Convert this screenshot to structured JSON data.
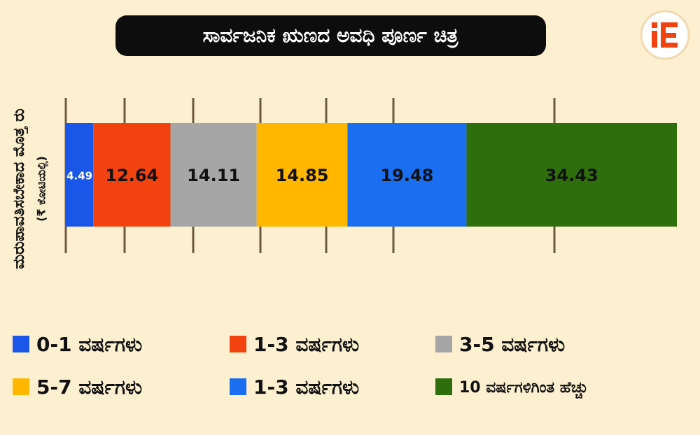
{
  "chart_data": {
    "type": "stacked-barh",
    "title": "ಸಾರ್ವಜನಿಕ ಋಣದ ಅವಧಿ ಪೂರ್ಣ ಚಿತ್ರ",
    "ylabel": "ಮರುಪಾವತಿಸಬೇಕಾದ ಮೊತ್ತ ರು",
    "ylabel_sub": "(₹ ಕೋಟಿಯಲ್ಲಿ)",
    "xlim": [
      0,
      100
    ],
    "series": [
      {
        "name": "0-1 ವರ್ಷಗಳು",
        "color": "#1a56e8",
        "values": [
          4.49
        ]
      },
      {
        "name": "1-3 ವರ್ಷಗಳು",
        "color": "#f2420f",
        "values": [
          12.64
        ]
      },
      {
        "name": "3-5 ವರ್ಷಗಳು",
        "color": "#a6a6a6",
        "values": [
          14.11
        ]
      },
      {
        "name": "5-7 ವರ್ಷಗಳು",
        "color": "#ffb700",
        "values": [
          14.85
        ]
      },
      {
        "name": "1-3 ವರ್ಷಗಳು",
        "color": "#1a6ff0",
        "values": [
          19.48
        ]
      },
      {
        "name": "10 ವರ್ಷಗಳಿಗಿಂತ ಹೆಚ್ಚು",
        "color": "#2f6e0c",
        "values": [
          34.43
        ]
      }
    ]
  }
}
